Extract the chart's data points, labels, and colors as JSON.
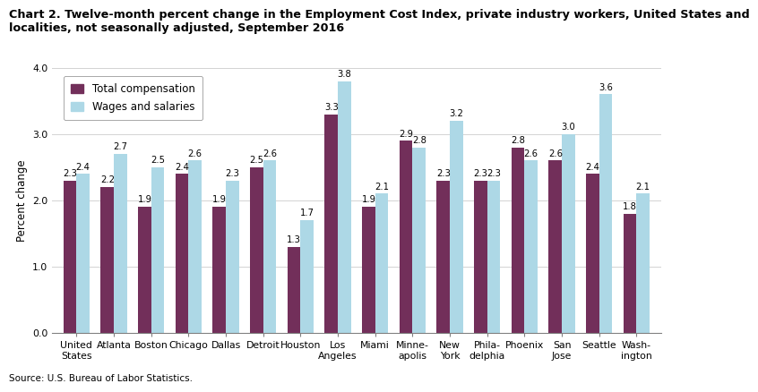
{
  "title_line1": "Chart 2. Twelve-month percent change in the Employment Cost Index, private industry workers, United States and",
  "title_line2": "localities, not seasonally adjusted, September 2016",
  "ylabel": "Percent change",
  "source": "Source: U.S. Bureau of Labor Statistics.",
  "categories": [
    "United\nStates",
    "Atlanta",
    "Boston",
    "Chicago",
    "Dallas",
    "Detroit",
    "Houston",
    "Los\nAngeles",
    "Miami",
    "Minne-\napolis",
    "New\nYork",
    "Phila-\ndelphia",
    "Phoenix",
    "San\nJose",
    "Seattle",
    "Wash-\nington"
  ],
  "total_compensation": [
    2.3,
    2.2,
    1.9,
    2.4,
    1.9,
    2.5,
    1.3,
    3.3,
    1.9,
    2.9,
    2.3,
    2.3,
    2.8,
    2.6,
    2.4,
    1.8
  ],
  "wages_and_salaries": [
    2.4,
    2.7,
    2.5,
    2.6,
    2.3,
    2.6,
    1.7,
    3.8,
    2.1,
    2.8,
    3.2,
    2.3,
    2.6,
    3.0,
    3.6,
    2.1
  ],
  "color_total": "#722F5A",
  "color_wages": "#ADD8E6",
  "ylim": [
    0,
    4.0
  ],
  "yticks": [
    0.0,
    1.0,
    2.0,
    3.0,
    4.0
  ],
  "bar_width": 0.35,
  "legend_labels": [
    "Total compensation",
    "Wages and salaries"
  ],
  "bar_label_fontsize": 7.2,
  "title_fontsize": 9.2,
  "ylabel_fontsize": 8.5,
  "tick_fontsize": 7.8
}
